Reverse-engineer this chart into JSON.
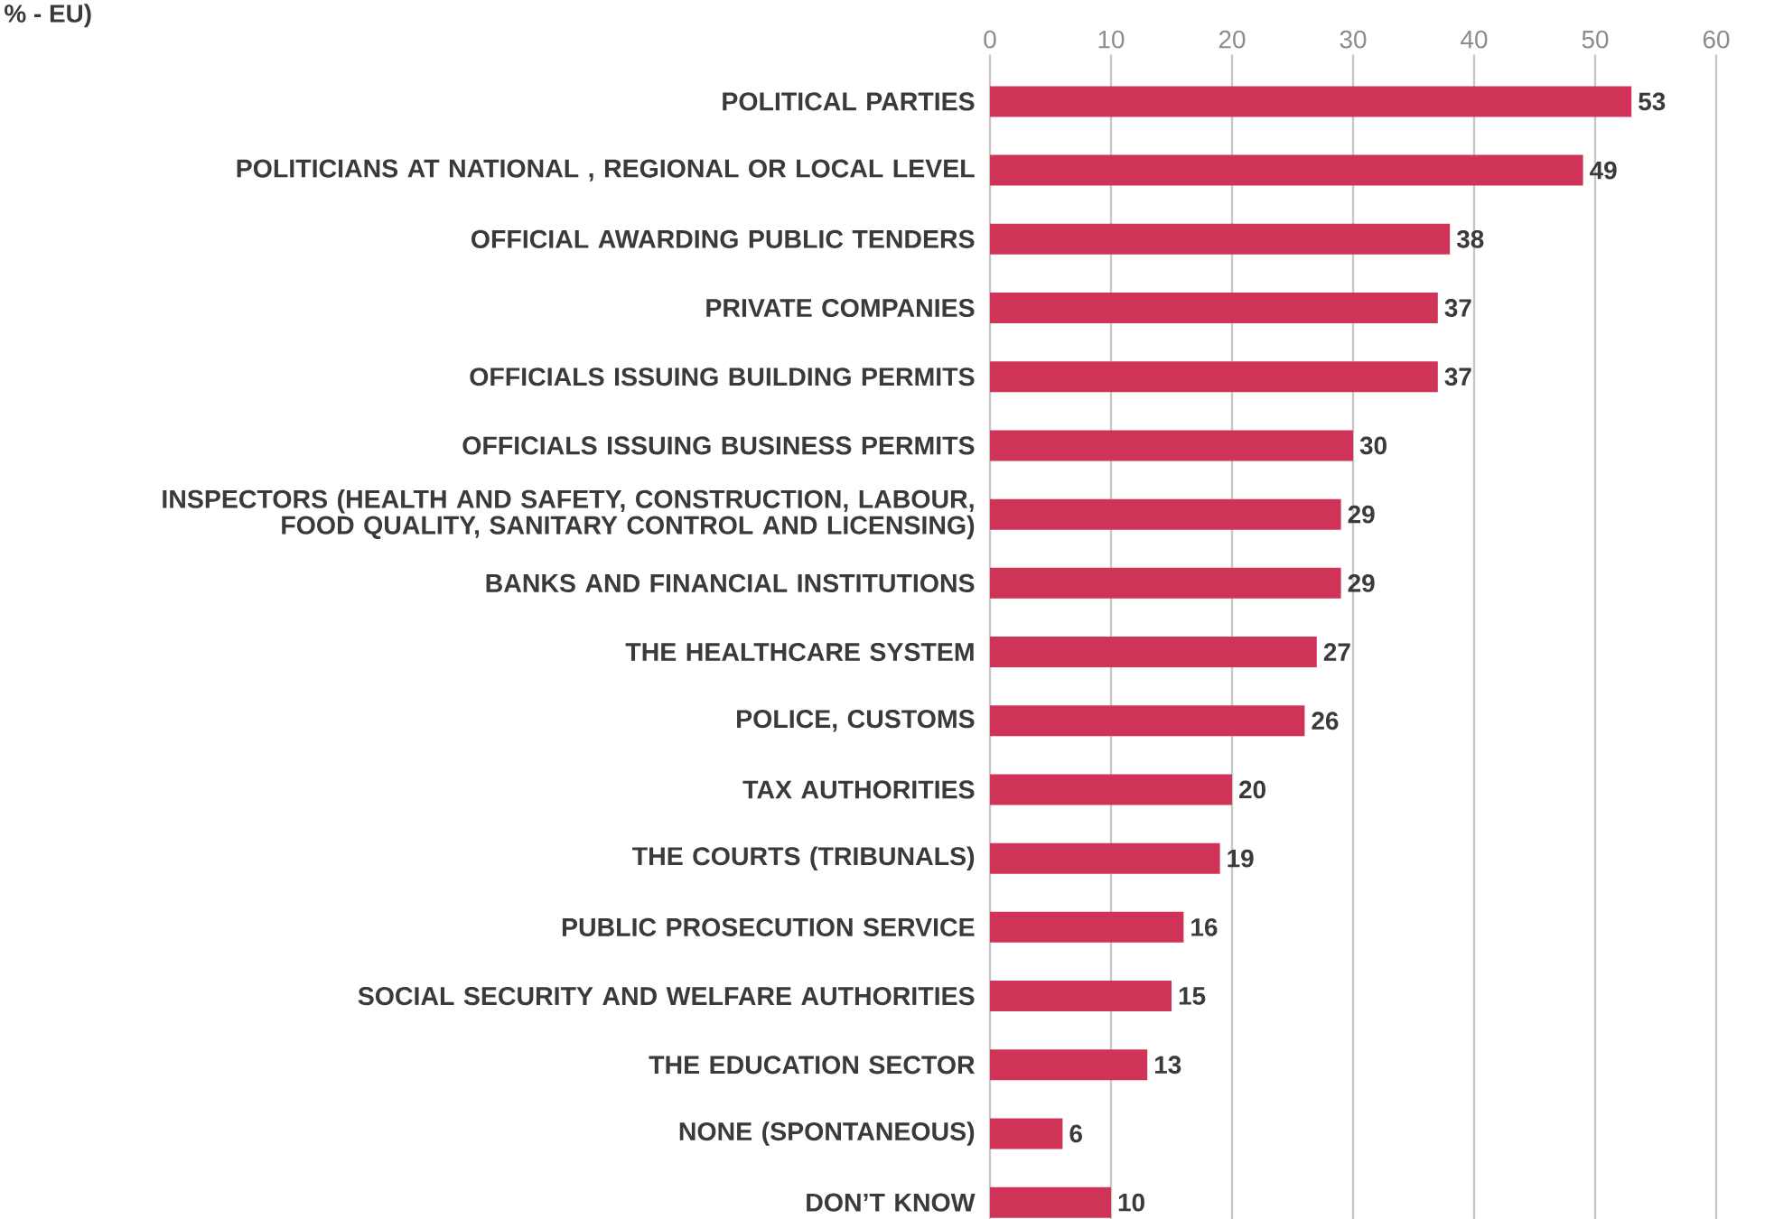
{
  "chart_data": {
    "type": "bar",
    "orientation": "horizontal",
    "annotations": [
      "% - EU)"
    ],
    "categories": [
      "POLITICAL PARTIES",
      "POLITICIANS AT NATIONAL , REGIONAL OR LOCAL LEVEL",
      "OFFICIAL AWARDING PUBLIC TENDERS",
      "PRIVATE COMPANIES",
      "OFFICIALS ISSUING BUILDING PERMITS",
      "OFFICIALS ISSUING BUSINESS PERMITS",
      "INSPECTORS (HEALTH AND SAFETY, CONSTRUCTION, LABOUR, FOOD QUALITY, SANITARY CONTROL AND LICENSING)",
      "BANKS AND FINANCIAL INSTITUTIONS",
      "THE HEALTHCARE SYSTEM",
      "POLICE, CUSTOMS",
      "TAX AUTHORITIES",
      "THE COURTS (TRIBUNALS)",
      "PUBLIC PROSECUTION SERVICE",
      "SOCIAL SECURITY AND WELFARE AUTHORITIES",
      "THE EDUCATION SECTOR",
      "NONE (SPONTANEOUS)",
      "DON’T KNOW"
    ],
    "values": [
      53,
      49,
      38,
      37,
      37,
      30,
      29,
      29,
      27,
      26,
      20,
      19,
      16,
      15,
      13,
      6,
      10
    ],
    "color": "#d03358",
    "data_labels": true,
    "grid": "x",
    "xlim": [
      0,
      60
    ],
    "xticks": [
      0,
      10,
      20,
      30,
      40,
      50,
      60
    ]
  }
}
